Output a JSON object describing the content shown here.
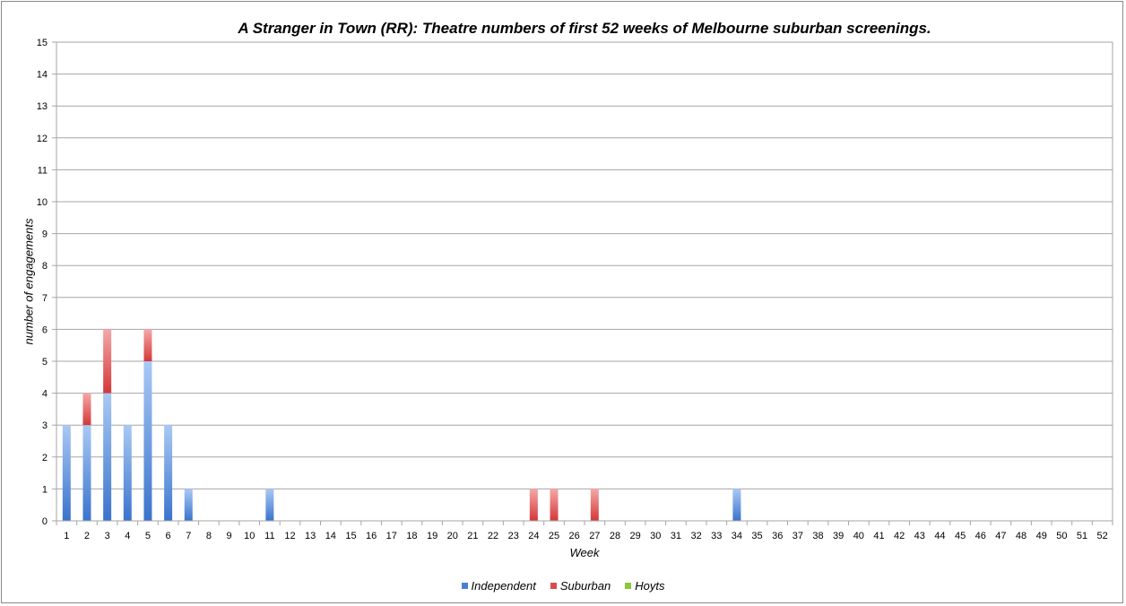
{
  "chart_data": {
    "type": "bar",
    "stacked": true,
    "title": "A Stranger in Town (RR): Theatre numbers of first 52 weeks of Melbourne suburban screenings.",
    "xlabel": "Week",
    "ylabel": "number of engagements",
    "ylim": [
      0,
      15
    ],
    "yticks": [
      "0",
      "1",
      "2",
      "3",
      "4",
      "5",
      "6",
      "7",
      "8",
      "9",
      "10",
      "11",
      "12",
      "13",
      "14",
      "15"
    ],
    "categories": [
      "1",
      "2",
      "3",
      "4",
      "5",
      "6",
      "7",
      "8",
      "9",
      "10",
      "11",
      "12",
      "13",
      "14",
      "15",
      "16",
      "17",
      "18",
      "19",
      "20",
      "21",
      "22",
      "23",
      "24",
      "25",
      "26",
      "27",
      "28",
      "29",
      "30",
      "31",
      "32",
      "33",
      "34",
      "35",
      "36",
      "37",
      "38",
      "39",
      "40",
      "41",
      "42",
      "43",
      "44",
      "45",
      "46",
      "47",
      "48",
      "49",
      "50",
      "51",
      "52"
    ],
    "grid": true,
    "legend_position": "bottom",
    "series": [
      {
        "name": "Independent",
        "color": "#4a7fd0",
        "values": [
          3,
          3,
          4,
          3,
          5,
          3,
          1,
          0,
          0,
          0,
          1,
          0,
          0,
          0,
          0,
          0,
          0,
          0,
          0,
          0,
          0,
          0,
          0,
          0,
          0,
          0,
          0,
          0,
          0,
          0,
          0,
          0,
          0,
          1,
          0,
          0,
          0,
          0,
          0,
          0,
          0,
          0,
          0,
          0,
          0,
          0,
          0,
          0,
          0,
          0,
          0,
          0
        ]
      },
      {
        "name": "Suburban",
        "color": "#d94c4c",
        "values": [
          0,
          1,
          2,
          0,
          1,
          0,
          0,
          0,
          0,
          0,
          0,
          0,
          0,
          0,
          0,
          0,
          0,
          0,
          0,
          0,
          0,
          0,
          0,
          1,
          1,
          0,
          1,
          0,
          0,
          0,
          0,
          0,
          0,
          0,
          0,
          0,
          0,
          0,
          0,
          0,
          0,
          0,
          0,
          0,
          0,
          0,
          0,
          0,
          0,
          0,
          0,
          0
        ]
      },
      {
        "name": "Hoyts",
        "color": "#8cc83c",
        "values": [
          0,
          0,
          0,
          0,
          0,
          0,
          0,
          0,
          0,
          0,
          0,
          0,
          0,
          0,
          0,
          0,
          0,
          0,
          0,
          0,
          0,
          0,
          0,
          0,
          0,
          0,
          0,
          0,
          0,
          0,
          0,
          0,
          0,
          0,
          0,
          0,
          0,
          0,
          0,
          0,
          0,
          0,
          0,
          0,
          0,
          0,
          0,
          0,
          0,
          0,
          0,
          0
        ]
      }
    ]
  }
}
